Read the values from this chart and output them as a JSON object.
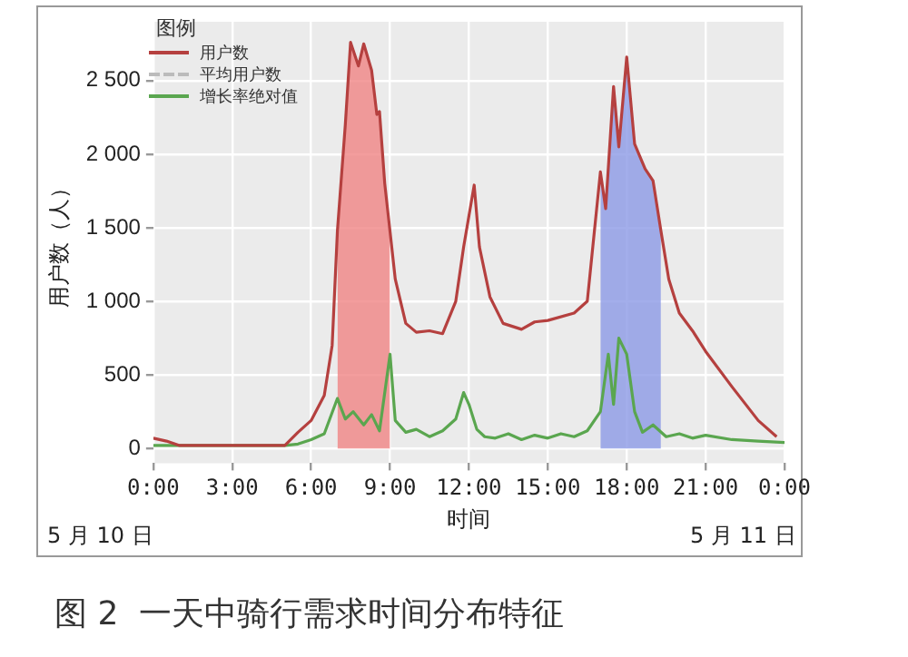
{
  "chart_data": {
    "type": "line",
    "xlabel": "时间",
    "ylabel": "用户数（人）",
    "legend_title": "图例",
    "legend": "top left",
    "grid": true,
    "marker": "none",
    "xlim": [
      0,
      24
    ],
    "xticks": [
      {
        "value": 0,
        "label": "0:00"
      },
      {
        "value": 3,
        "label": "3:00"
      },
      {
        "value": 6,
        "label": "6:00"
      },
      {
        "value": 9,
        "label": "9:00"
      },
      {
        "value": 12,
        "label": "12:00"
      },
      {
        "value": 15,
        "label": "15:00"
      },
      {
        "value": 18,
        "label": "18:00"
      },
      {
        "value": 21,
        "label": "21:00"
      },
      {
        "value": 24,
        "label": "0:00"
      }
    ],
    "ylim": [
      -100,
      2900
    ],
    "yticks": [
      {
        "value": 0,
        "label": "0"
      },
      {
        "value": 500,
        "label": "500"
      },
      {
        "value": 1000,
        "label": "1 000"
      },
      {
        "value": 1500,
        "label": "1 500"
      },
      {
        "value": 2000,
        "label": "2 000"
      },
      {
        "value": 2500,
        "label": "2 500"
      }
    ],
    "series": [
      {
        "name": "用户数",
        "color": "#b5403f",
        "x": [
          0,
          0.5,
          1,
          2,
          3,
          4,
          5,
          5.5,
          6,
          6.5,
          6.8,
          7,
          7.3,
          7.5,
          7.8,
          8,
          8.3,
          8.5,
          8.6,
          8.8,
          9.2,
          9.6,
          10,
          10.5,
          11,
          11.5,
          11.8,
          12.2,
          12.4,
          12.8,
          13.3,
          14,
          14.5,
          15,
          16,
          16.5,
          17,
          17.2,
          17.5,
          17.7,
          18,
          18.3,
          18.7,
          19,
          19.3,
          19.6,
          20,
          20.5,
          21,
          22,
          23,
          23.7
        ],
        "values": [
          70,
          50,
          20,
          20,
          20,
          20,
          20,
          110,
          190,
          360,
          700,
          1480,
          2200,
          2760,
          2600,
          2750,
          2570,
          2270,
          2290,
          1800,
          1150,
          850,
          790,
          800,
          780,
          1000,
          1370,
          1790,
          1370,
          1030,
          850,
          810,
          860,
          870,
          920,
          1000,
          1880,
          1630,
          2460,
          2050,
          2660,
          2070,
          1900,
          1820,
          1480,
          1150,
          920,
          800,
          660,
          420,
          190,
          80
        ]
      },
      {
        "name": "平均用户数",
        "color": "#bbbbbb",
        "line_style": "dashed"
      },
      {
        "type": "area",
        "color": "#f08585",
        "x": [
          7,
          7.3,
          7.5,
          7.8,
          8,
          8.3,
          8.5,
          8.6,
          8.8,
          9
        ],
        "values": [
          1480,
          2200,
          2760,
          2600,
          2750,
          2570,
          2270,
          2290,
          1800,
          1480
        ]
      },
      {
        "type": "area",
        "color": "#8c9ae6",
        "x": [
          17,
          17.2,
          17.5,
          17.7,
          18,
          18.3,
          18.7,
          19,
          19.3
        ],
        "values": [
          1880,
          1630,
          2460,
          2050,
          2660,
          2070,
          1900,
          1820,
          1480
        ]
      },
      {
        "name": "增长率绝对值",
        "color": "#5aa64f",
        "x": [
          0,
          1,
          2,
          3,
          4,
          5,
          5.5,
          6,
          6.5,
          7,
          7.3,
          7.6,
          8,
          8.3,
          8.6,
          9,
          9.2,
          9.6,
          10,
          10.5,
          11,
          11.5,
          11.8,
          12,
          12.3,
          12.6,
          13,
          13.5,
          14,
          14.5,
          15,
          15.5,
          16,
          16.5,
          17,
          17.3,
          17.5,
          17.7,
          18,
          18.3,
          18.6,
          19,
          19.5,
          20,
          20.5,
          21,
          22,
          23,
          24
        ],
        "values": [
          20,
          20,
          20,
          20,
          20,
          20,
          30,
          60,
          100,
          340,
          200,
          250,
          160,
          230,
          120,
          640,
          190,
          110,
          130,
          80,
          120,
          200,
          380,
          300,
          130,
          80,
          70,
          100,
          60,
          90,
          70,
          100,
          80,
          120,
          250,
          640,
          300,
          750,
          640,
          250,
          110,
          160,
          80,
          100,
          70,
          90,
          60,
          50,
          40
        ]
      }
    ],
    "annotations": [
      "5 月 10 日",
      "5 月 11 日",
      "图 2  一天中骑行需求时间分布特征"
    ]
  }
}
